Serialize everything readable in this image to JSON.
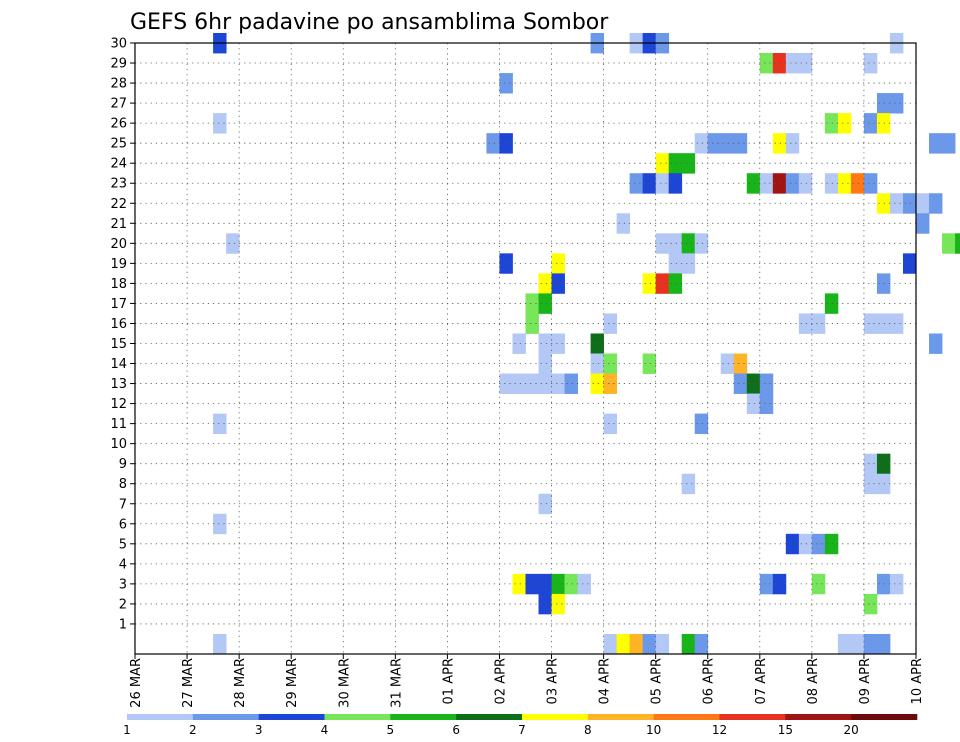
{
  "chart_data": {
    "type": "heatmap",
    "title": "GEFS 6hr padavine po ansamblima Sombor",
    "ylim": [
      0,
      30
    ],
    "y_ticks": [
      "1",
      "2",
      "3",
      "4",
      "5",
      "6",
      "7",
      "8",
      "9",
      "10",
      "11",
      "12",
      "13",
      "14",
      "15",
      "16",
      "17",
      "18",
      "19",
      "20",
      "21",
      "22",
      "23",
      "24",
      "25",
      "26",
      "27",
      "28",
      "29",
      "30"
    ],
    "x_ticks": [
      "26 MAR",
      "27 MAR",
      "28 MAR",
      "29 MAR",
      "30 MAR",
      "31 MAR",
      "01 APR",
      "02 APR",
      "03 APR",
      "04 APR",
      "05 APR",
      "06 APR",
      "07 APR",
      "08 APR",
      "09 APR",
      "10 APR"
    ],
    "grid": true,
    "colorbar": {
      "labels": [
        "1",
        "2",
        "3",
        "4",
        "5",
        "6",
        "7",
        "8",
        "10",
        "12",
        "15",
        "20"
      ],
      "colors": [
        "#b4c8f5",
        "#6c98ea",
        "#1e46d6",
        "#78e65a",
        "#19b419",
        "#0f6e19",
        "#ffff00",
        "#ffb428",
        "#ff7814",
        "#e6321e",
        "#a01414",
        "#6e0a0a"
      ]
    },
    "cells": [
      {
        "day": 1.5,
        "y": 30,
        "c": 3
      },
      {
        "day": 1.5,
        "y": 26,
        "c": 1
      },
      {
        "day": 1.5,
        "y": 11,
        "c": 1
      },
      {
        "day": 1.5,
        "y": 6,
        "c": 1
      },
      {
        "day": 1.5,
        "y": 0,
        "c": 1
      },
      {
        "day": 1.75,
        "y": 20,
        "c": 1
      },
      {
        "day": 6.75,
        "y": 25,
        "c": 2
      },
      {
        "day": 7.0,
        "y": 28,
        "c": 2
      },
      {
        "day": 7.0,
        "y": 25,
        "c": 3
      },
      {
        "day": 7.0,
        "y": 19,
        "c": 3
      },
      {
        "day": 7.0,
        "y": 13,
        "c": 1
      },
      {
        "day": 7.25,
        "y": 15,
        "c": 1
      },
      {
        "day": 7.25,
        "y": 13,
        "c": 1
      },
      {
        "day": 7.25,
        "y": 3,
        "c": 7
      },
      {
        "day": 7.5,
        "y": 17,
        "c": 4
      },
      {
        "day": 7.5,
        "y": 16,
        "c": 4
      },
      {
        "day": 7.5,
        "y": 13,
        "c": 1
      },
      {
        "day": 7.5,
        "y": 3,
        "c": 3
      },
      {
        "day": 7.75,
        "y": 18,
        "c": 7
      },
      {
        "day": 7.75,
        "y": 17,
        "c": 5
      },
      {
        "day": 7.75,
        "y": 15,
        "c": 1
      },
      {
        "day": 7.75,
        "y": 14,
        "c": 1
      },
      {
        "day": 7.75,
        "y": 13,
        "c": 1
      },
      {
        "day": 7.75,
        "y": 7,
        "c": 1
      },
      {
        "day": 7.75,
        "y": 3,
        "c": 3
      },
      {
        "day": 7.75,
        "y": 2,
        "c": 3
      },
      {
        "day": 8.0,
        "y": 19,
        "c": 7
      },
      {
        "day": 8.0,
        "y": 18,
        "c": 3
      },
      {
        "day": 8.0,
        "y": 15,
        "c": 1
      },
      {
        "day": 8.0,
        "y": 13,
        "c": 1
      },
      {
        "day": 8.0,
        "y": 3,
        "c": 5
      },
      {
        "day": 8.0,
        "y": 2,
        "c": 7
      },
      {
        "day": 8.25,
        "y": 13,
        "c": 2
      },
      {
        "day": 8.25,
        "y": 3,
        "c": 4
      },
      {
        "day": 8.5,
        "y": 3,
        "c": 1
      },
      {
        "day": 8.75,
        "y": 30,
        "c": 2
      },
      {
        "day": 8.75,
        "y": 15,
        "c": 6
      },
      {
        "day": 8.75,
        "y": 14,
        "c": 1
      },
      {
        "day": 8.75,
        "y": 13,
        "c": 7
      },
      {
        "day": 9.0,
        "y": 16,
        "c": 1
      },
      {
        "day": 9.0,
        "y": 14,
        "c": 4
      },
      {
        "day": 9.0,
        "y": 13,
        "c": 8
      },
      {
        "day": 9.0,
        "y": 11,
        "c": 1
      },
      {
        "day": 9.0,
        "y": 0,
        "c": 1
      },
      {
        "day": 9.25,
        "y": 21,
        "c": 1
      },
      {
        "day": 9.25,
        "y": 0,
        "c": 7
      },
      {
        "day": 9.5,
        "y": 30,
        "c": 1
      },
      {
        "day": 9.5,
        "y": 23,
        "c": 2
      },
      {
        "day": 9.5,
        "y": 0,
        "c": 8
      },
      {
        "day": 9.75,
        "y": 30,
        "c": 3
      },
      {
        "day": 9.75,
        "y": 23,
        "c": 3
      },
      {
        "day": 9.75,
        "y": 18,
        "c": 7
      },
      {
        "day": 9.75,
        "y": 14,
        "c": 4
      },
      {
        "day": 9.75,
        "y": 0,
        "c": 2
      },
      {
        "day": 10.0,
        "y": 30,
        "c": 2
      },
      {
        "day": 10.0,
        "y": 24,
        "c": 7
      },
      {
        "day": 10.0,
        "y": 23,
        "c": 1
      },
      {
        "day": 10.0,
        "y": 20,
        "c": 1
      },
      {
        "day": 10.0,
        "y": 18,
        "c": 10
      },
      {
        "day": 10.0,
        "y": 0,
        "c": 1
      },
      {
        "day": 10.25,
        "y": 24,
        "c": 5
      },
      {
        "day": 10.25,
        "y": 23,
        "c": 3
      },
      {
        "day": 10.25,
        "y": 20,
        "c": 1
      },
      {
        "day": 10.25,
        "y": 19,
        "c": 1
      },
      {
        "day": 10.25,
        "y": 18,
        "c": 5
      },
      {
        "day": 10.5,
        "y": 24,
        "c": 5
      },
      {
        "day": 10.5,
        "y": 20,
        "c": 5
      },
      {
        "day": 10.5,
        "y": 19,
        "c": 1
      },
      {
        "day": 10.5,
        "y": 8,
        "c": 1
      },
      {
        "day": 10.5,
        "y": 0,
        "c": 5
      },
      {
        "day": 10.75,
        "y": 25,
        "c": 1
      },
      {
        "day": 10.75,
        "y": 20,
        "c": 1
      },
      {
        "day": 10.75,
        "y": 11,
        "c": 2
      },
      {
        "day": 10.75,
        "y": 0,
        "c": 2
      },
      {
        "day": 11.0,
        "y": 25,
        "c": 2
      },
      {
        "day": 11.25,
        "y": 25,
        "c": 2
      },
      {
        "day": 11.25,
        "y": 14,
        "c": 1
      },
      {
        "day": 11.5,
        "y": 25,
        "c": 2
      },
      {
        "day": 11.5,
        "y": 14,
        "c": 8
      },
      {
        "day": 11.5,
        "y": 13,
        "c": 2
      },
      {
        "day": 11.75,
        "y": 23,
        "c": 5
      },
      {
        "day": 11.75,
        "y": 13,
        "c": 6
      },
      {
        "day": 11.75,
        "y": 12,
        "c": 1
      },
      {
        "day": 12.0,
        "y": 29,
        "c": 4
      },
      {
        "day": 12.0,
        "y": 23,
        "c": 1
      },
      {
        "day": 12.0,
        "y": 13,
        "c": 2
      },
      {
        "day": 12.0,
        "y": 12,
        "c": 2
      },
      {
        "day": 12.0,
        "y": 3,
        "c": 2
      },
      {
        "day": 12.25,
        "y": 29,
        "c": 10
      },
      {
        "day": 12.25,
        "y": 25,
        "c": 7
      },
      {
        "day": 12.25,
        "y": 23,
        "c": 11
      },
      {
        "day": 12.25,
        "y": 3,
        "c": 3
      },
      {
        "day": 12.5,
        "y": 29,
        "c": 1
      },
      {
        "day": 12.5,
        "y": 25,
        "c": 1
      },
      {
        "day": 12.5,
        "y": 23,
        "c": 2
      },
      {
        "day": 12.5,
        "y": 5,
        "c": 3
      },
      {
        "day": 12.75,
        "y": 29,
        "c": 1
      },
      {
        "day": 12.75,
        "y": 23,
        "c": 1
      },
      {
        "day": 12.75,
        "y": 16,
        "c": 1
      },
      {
        "day": 12.75,
        "y": 5,
        "c": 1
      },
      {
        "day": 13.0,
        "y": 16,
        "c": 1
      },
      {
        "day": 13.0,
        "y": 5,
        "c": 2
      },
      {
        "day": 13.0,
        "y": 3,
        "c": 4
      },
      {
        "day": 13.25,
        "y": 26,
        "c": 4
      },
      {
        "day": 13.25,
        "y": 23,
        "c": 1
      },
      {
        "day": 13.25,
        "y": 17,
        "c": 5
      },
      {
        "day": 13.25,
        "y": 5,
        "c": 5
      },
      {
        "day": 13.5,
        "y": 26,
        "c": 7
      },
      {
        "day": 13.5,
        "y": 23,
        "c": 7
      },
      {
        "day": 13.5,
        "y": 0,
        "c": 1
      },
      {
        "day": 13.75,
        "y": 23,
        "c": 9
      },
      {
        "day": 13.75,
        "y": 0,
        "c": 1
      },
      {
        "day": 14.0,
        "y": 29,
        "c": 1
      },
      {
        "day": 14.0,
        "y": 26,
        "c": 2
      },
      {
        "day": 14.0,
        "y": 23,
        "c": 2
      },
      {
        "day": 14.0,
        "y": 16,
        "c": 1
      },
      {
        "day": 14.0,
        "y": 9,
        "c": 1
      },
      {
        "day": 14.0,
        "y": 8,
        "c": 1
      },
      {
        "day": 14.0,
        "y": 2,
        "c": 4
      },
      {
        "day": 14.0,
        "y": 0,
        "c": 2
      },
      {
        "day": 14.25,
        "y": 27,
        "c": 2
      },
      {
        "day": 14.25,
        "y": 26,
        "c": 7
      },
      {
        "day": 14.25,
        "y": 22,
        "c": 7
      },
      {
        "day": 14.25,
        "y": 18,
        "c": 2
      },
      {
        "day": 14.25,
        "y": 16,
        "c": 1
      },
      {
        "day": 14.25,
        "y": 9,
        "c": 6
      },
      {
        "day": 14.25,
        "y": 8,
        "c": 1
      },
      {
        "day": 14.25,
        "y": 3,
        "c": 2
      },
      {
        "day": 14.25,
        "y": 0,
        "c": 2
      },
      {
        "day": 14.5,
        "y": 30,
        "c": 1
      },
      {
        "day": 14.5,
        "y": 27,
        "c": 2
      },
      {
        "day": 14.5,
        "y": 22,
        "c": 1
      },
      {
        "day": 14.5,
        "y": 16,
        "c": 1
      },
      {
        "day": 14.5,
        "y": 3,
        "c": 1
      },
      {
        "day": 14.75,
        "y": 22,
        "c": 2
      },
      {
        "day": 14.75,
        "y": 19,
        "c": 3
      },
      {
        "day": 15.0,
        "y": 22,
        "c": 1
      },
      {
        "day": 15.0,
        "y": 21,
        "c": 2
      },
      {
        "day": 15.25,
        "y": 25,
        "c": 2
      },
      {
        "day": 15.25,
        "y": 22,
        "c": 2
      },
      {
        "day": 15.25,
        "y": 15,
        "c": 2
      },
      {
        "day": 15.5,
        "y": 25,
        "c": 2
      },
      {
        "day": 15.5,
        "y": 20,
        "c": 4
      },
      {
        "day": 15.75,
        "y": 20,
        "c": 5
      }
    ]
  }
}
